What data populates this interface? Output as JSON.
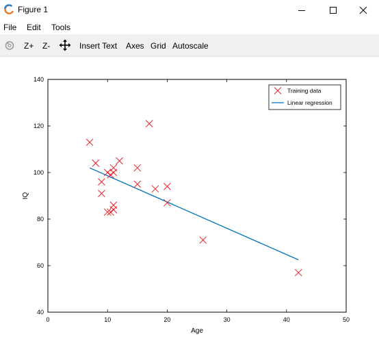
{
  "window": {
    "title": "Figure 1"
  },
  "menu": {
    "items": [
      "File",
      "Edit",
      "Tools"
    ]
  },
  "toolbar": {
    "zoom_in": "Z+",
    "zoom_out": "Z-",
    "insert_text": "Insert Text",
    "axes": "Axes",
    "grid": "Grid",
    "autoscale": "Autoscale"
  },
  "colors": {
    "marker": "#e8222b",
    "regression_line": "#0072bd"
  },
  "chart_data": {
    "type": "scatter",
    "title": "",
    "xlabel": "Age",
    "ylabel": "IQ",
    "xlim": [
      0,
      50
    ],
    "ylim": [
      40,
      140
    ],
    "xticks": [
      0,
      10,
      20,
      30,
      40,
      50
    ],
    "yticks": [
      40,
      60,
      80,
      100,
      120,
      140
    ],
    "grid": false,
    "legend_position": "top-right",
    "series": [
      {
        "name": "Training data",
        "kind": "scatter",
        "marker": "x",
        "x": [
          7,
          8,
          9,
          9,
          10,
          10,
          10.5,
          10.5,
          11,
          11,
          11,
          11,
          12,
          15,
          15,
          17,
          18,
          20,
          20,
          26,
          42
        ],
        "y": [
          113,
          104,
          96,
          91,
          100,
          83,
          83,
          99,
          102,
          100,
          86,
          84,
          105,
          102,
          95,
          121,
          93,
          94,
          87,
          71,
          57
        ]
      },
      {
        "name": "Linear regression",
        "kind": "line",
        "x": [
          7,
          42
        ],
        "y": [
          102,
          62.5
        ]
      }
    ]
  }
}
